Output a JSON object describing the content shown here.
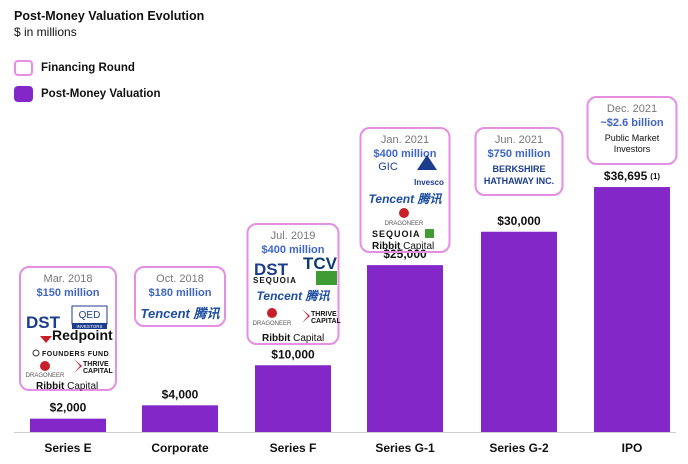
{
  "chart_data": {
    "type": "bar",
    "title": "Post-Money Valuation Evolution",
    "subtitle": "$ in millions",
    "legend": [
      {
        "label": "Financing Round",
        "style": "outline"
      },
      {
        "label": "Post-Money Valuation",
        "style": "filled"
      }
    ],
    "legend_placement": "top-left",
    "categories": [
      "Series E",
      "Corporate",
      "Series F",
      "Series G-1",
      "Series G-2",
      "IPO"
    ],
    "series": [
      {
        "name": "Post-Money Valuation",
        "values": [
          2000,
          4000,
          10000,
          25000,
          30000,
          36695
        ]
      }
    ],
    "value_labels": [
      "$2,000",
      "$4,000",
      "$10,000",
      "$25,000",
      "$30,000",
      "$36,695"
    ],
    "value_label_notes": [
      "",
      "",
      "",
      "",
      "",
      "(1)"
    ],
    "ylim": [
      0,
      40000
    ],
    "grid": false,
    "rounds": [
      {
        "date": "Mar. 2018",
        "amount": "$150 million",
        "investors": [
          "DST",
          "QED INVESTORS",
          "Redpoint",
          "FOUNDERS FUND",
          "DRAGONEER",
          "THRIVE CAPITAL",
          "Ribbit Capital"
        ]
      },
      {
        "date": "Oct. 2018",
        "amount": "$180 million",
        "investors": [
          "Tencent 腾讯"
        ]
      },
      {
        "date": "Jul. 2019",
        "amount": "$400 million",
        "investors": [
          "DST",
          "TCV",
          "SEQUOIA",
          "Tencent 腾讯",
          "DRAGONEER",
          "THRIVE CAPITAL",
          "Ribbit Capital"
        ]
      },
      {
        "date": "Jan. 2021",
        "amount": "$400 million",
        "investors": [
          "GIC",
          "Invesco",
          "Tencent 腾讯",
          "DRAGONEER",
          "SEQUOIA",
          "Ribbit Capital"
        ]
      },
      {
        "date": "Jun. 2021",
        "amount": "$750 million",
        "investors": [
          "BERKSHIRE",
          "HATHAWAY INC."
        ]
      },
      {
        "date": "Dec. 2021",
        "amount": "~$2.6 billion",
        "investors": [
          "Public Market",
          "Investors"
        ]
      }
    ],
    "colors": {
      "bar": "#8427c9",
      "round_border": "#e58ee3",
      "amount": "#3f66c4",
      "date": "#777777",
      "axis": "#cccccc",
      "red_logo": "#c8202a",
      "green_logo": "#3f9c35"
    }
  }
}
